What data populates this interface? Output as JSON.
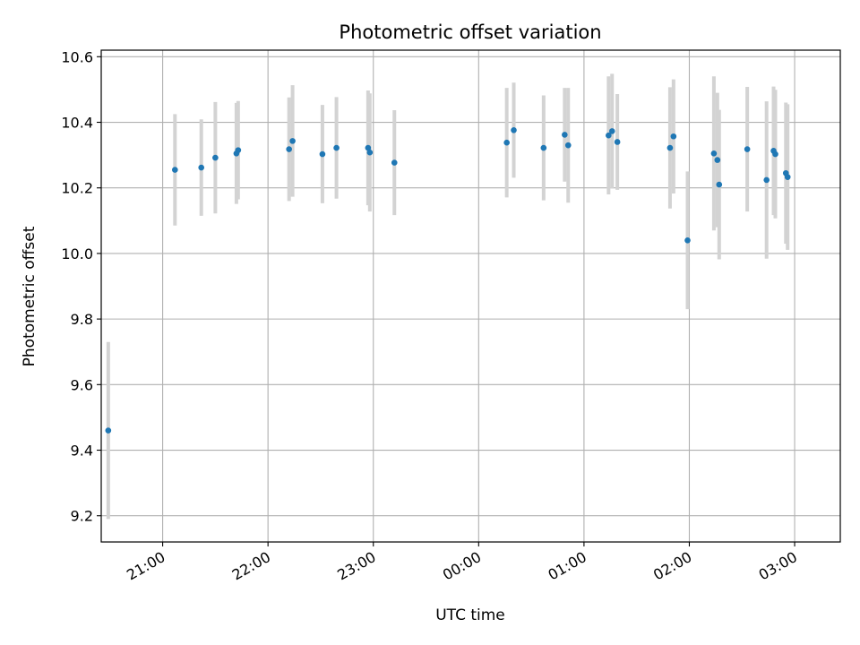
{
  "chart_data": {
    "type": "scatter",
    "title": "Photometric offset variation",
    "xlabel": "UTC time",
    "ylabel": "Photometric offset",
    "x_axis_kind": "time",
    "xlim": [
      "20:25",
      "03:26"
    ],
    "ylim": [
      9.12,
      10.62
    ],
    "grid": true,
    "x_tick_values": [
      "21:00",
      "22:00",
      "23:00",
      "00:00",
      "01:00",
      "02:00",
      "03:00"
    ],
    "x_tick_labels": [
      "21:00",
      "22:00",
      "23:00",
      "00:00",
      "01:00",
      "02:00",
      "03:00"
    ],
    "y_ticks": [
      9.2,
      9.4,
      9.6,
      9.8,
      10.0,
      10.2,
      10.4,
      10.6
    ],
    "y_tick_labels": [
      "9.2",
      "9.4",
      "9.6",
      "9.8",
      "10.0",
      "10.2",
      "10.4",
      "10.6"
    ],
    "colors": {
      "point": "#1f77b4",
      "errorbar": "#d3d3d3",
      "grid": "#b0b0b0"
    },
    "points": [
      {
        "x": "20:29",
        "y": 9.46,
        "err": 0.27
      },
      {
        "x": "21:07",
        "y": 10.255,
        "err": 0.17
      },
      {
        "x": "21:22",
        "y": 10.262,
        "err": 0.147
      },
      {
        "x": "21:30",
        "y": 10.292,
        "err": 0.17
      },
      {
        "x": "21:42",
        "y": 10.305,
        "err": 0.154
      },
      {
        "x": "21:43",
        "y": 10.315,
        "err": 0.15
      },
      {
        "x": "22:12",
        "y": 10.318,
        "err": 0.158
      },
      {
        "x": "22:14",
        "y": 10.343,
        "err": 0.17
      },
      {
        "x": "22:31",
        "y": 10.303,
        "err": 0.15
      },
      {
        "x": "22:39",
        "y": 10.322,
        "err": 0.155
      },
      {
        "x": "22:57",
        "y": 10.322,
        "err": 0.175
      },
      {
        "x": "22:58",
        "y": 10.308,
        "err": 0.18
      },
      {
        "x": "23:12",
        "y": 10.277,
        "err": 0.16
      },
      {
        "x": "00:16",
        "y": 10.338,
        "err": 0.167
      },
      {
        "x": "00:20",
        "y": 10.376,
        "err": 0.145
      },
      {
        "x": "00:37",
        "y": 10.322,
        "err": 0.16
      },
      {
        "x": "00:49",
        "y": 10.362,
        "err": 0.143
      },
      {
        "x": "00:51",
        "y": 10.33,
        "err": 0.175
      },
      {
        "x": "01:14",
        "y": 10.36,
        "err": 0.18
      },
      {
        "x": "01:16",
        "y": 10.373,
        "err": 0.175
      },
      {
        "x": "01:19",
        "y": 10.34,
        "err": 0.146
      },
      {
        "x": "01:49",
        "y": 10.322,
        "err": 0.185
      },
      {
        "x": "01:51",
        "y": 10.357,
        "err": 0.174
      },
      {
        "x": "01:59",
        "y": 10.04,
        "err": 0.21
      },
      {
        "x": "02:14",
        "y": 10.305,
        "err": 0.235
      },
      {
        "x": "02:16",
        "y": 10.285,
        "err": 0.205
      },
      {
        "x": "02:17",
        "y": 10.21,
        "err": 0.228
      },
      {
        "x": "02:33",
        "y": 10.318,
        "err": 0.19
      },
      {
        "x": "02:44",
        "y": 10.224,
        "err": 0.24
      },
      {
        "x": "02:48",
        "y": 10.313,
        "err": 0.196
      },
      {
        "x": "02:49",
        "y": 10.303,
        "err": 0.196
      },
      {
        "x": "02:55",
        "y": 10.245,
        "err": 0.215
      },
      {
        "x": "02:56",
        "y": 10.233,
        "err": 0.222
      }
    ]
  }
}
